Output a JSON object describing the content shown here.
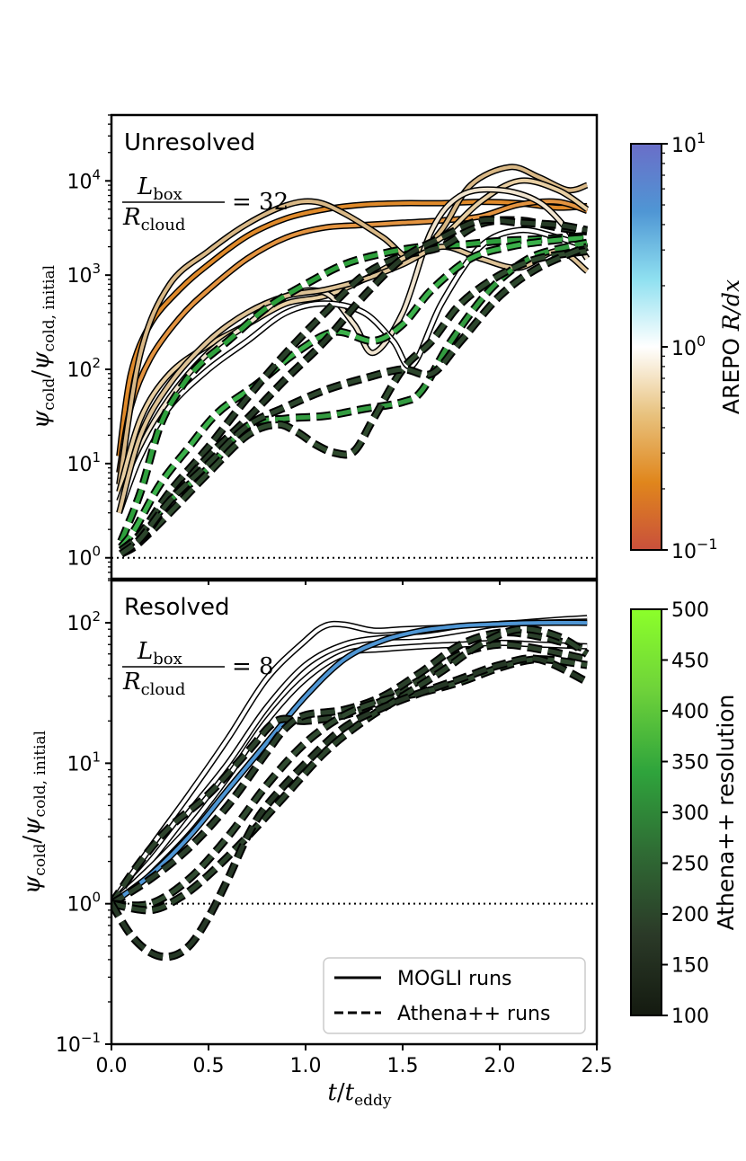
{
  "chart_data": [
    {
      "type": "line",
      "panel_label": "Unresolved",
      "annotation": {
        "numerator": "L",
        "numerator_sub": "box",
        "denominator": "R",
        "denominator_sub": "cloud",
        "value": "= 32"
      },
      "ylabel": {
        "main": "ψ",
        "sub_num": "cold",
        "slash": "/",
        "main2": "ψ",
        "sub_den": "cold, initial"
      },
      "yscale": "log",
      "ylim": [
        0.6,
        50000
      ],
      "xlim": [
        0,
        2.5
      ],
      "yticks": [
        {
          "v": 1,
          "label": "10",
          "exp": "0"
        },
        {
          "v": 10,
          "label": "10",
          "exp": "1"
        },
        {
          "v": 100,
          "label": "10",
          "exp": "2"
        },
        {
          "v": 1000,
          "label": "10",
          "exp": "3"
        },
        {
          "v": 10000,
          "label": "10",
          "exp": "4"
        }
      ],
      "reference_line": 1,
      "series": [
        {
          "style": "solid",
          "color": "#e08a2a",
          "x": [
            0.04,
            0.1,
            0.2,
            0.35,
            0.5,
            0.7,
            0.9,
            1.1,
            1.3,
            1.5,
            1.7,
            1.9,
            2.1,
            2.3,
            2.45
          ],
          "y": [
            12,
            90,
            300,
            700,
            1300,
            2600,
            4000,
            5000,
            5600,
            5800,
            5800,
            6000,
            5800,
            5200,
            5400
          ]
        },
        {
          "style": "solid",
          "color": "#e49440",
          "x": [
            0.04,
            0.1,
            0.2,
            0.35,
            0.5,
            0.7,
            0.9,
            1.1,
            1.3,
            1.5,
            1.7,
            1.9,
            2.1,
            2.3,
            2.45
          ],
          "y": [
            8,
            40,
            130,
            350,
            700,
            1500,
            2500,
            3200,
            3400,
            3600,
            3800,
            4200,
            5600,
            6000,
            4800
          ]
        },
        {
          "style": "solid",
          "color": "#d9b886",
          "x": [
            0.04,
            0.15,
            0.3,
            0.5,
            0.7,
            0.9,
            1.05,
            1.2,
            1.4,
            1.55,
            1.7,
            1.85,
            2.05,
            2.2,
            2.35,
            2.45
          ],
          "y": [
            6,
            150,
            800,
            1800,
            3500,
            5500,
            6000,
            4500,
            2500,
            1500,
            3000,
            9000,
            14000,
            11000,
            8000,
            9000
          ]
        },
        {
          "style": "solid",
          "color": "#e8cfa3",
          "x": [
            0.04,
            0.15,
            0.3,
            0.5,
            0.7,
            0.9,
            1.1,
            1.3,
            1.5,
            1.7,
            1.9,
            2.1,
            2.3,
            2.45
          ],
          "y": [
            5,
            30,
            90,
            180,
            300,
            500,
            600,
            900,
            1500,
            2500,
            6000,
            10000,
            8000,
            5000
          ]
        },
        {
          "style": "solid",
          "color": "#f0e4cf",
          "x": [
            0.04,
            0.15,
            0.3,
            0.5,
            0.7,
            0.9,
            1.1,
            1.25,
            1.35,
            1.5,
            1.65,
            1.8,
            2.0,
            2.2,
            2.35,
            2.45
          ],
          "y": [
            4,
            15,
            50,
            150,
            300,
            600,
            650,
            300,
            150,
            400,
            3000,
            7000,
            8000,
            6000,
            3000,
            1500
          ]
        },
        {
          "style": "solid",
          "color": "#ffffff",
          "x": [
            0.04,
            0.15,
            0.3,
            0.5,
            0.7,
            0.9,
            1.1,
            1.3,
            1.45,
            1.55,
            1.7,
            1.9,
            2.1,
            2.3,
            2.45
          ],
          "y": [
            3,
            12,
            40,
            100,
            200,
            400,
            500,
            400,
            200,
            110,
            500,
            2000,
            3000,
            2500,
            2000
          ]
        },
        {
          "style": "solid",
          "color": "#ddc296",
          "x": [
            0.04,
            0.15,
            0.3,
            0.5,
            0.7,
            0.9,
            1.1,
            1.3,
            1.5,
            1.7,
            1.9,
            2.1,
            2.3,
            2.45
          ],
          "y": [
            3,
            20,
            70,
            200,
            400,
            600,
            700,
            900,
            1300,
            2000,
            1500,
            1200,
            1800,
            1100
          ]
        },
        {
          "style": "dashed",
          "color": "#2ea03c",
          "x": [
            0.05,
            0.15,
            0.25,
            0.35,
            0.45,
            0.6,
            0.8,
            1.0,
            1.2,
            1.4,
            1.6,
            1.8,
            2.0,
            2.2,
            2.45
          ],
          "y": [
            1.5,
            5,
            25,
            60,
            110,
            200,
            450,
            800,
            1300,
            1700,
            2000,
            2100,
            2300,
            2400,
            2600
          ]
        },
        {
          "style": "dashed",
          "color": "#3bb04a",
          "x": [
            0.05,
            0.12,
            0.25,
            0.4,
            0.55,
            0.75,
            0.95,
            1.15,
            1.35,
            1.5,
            1.65,
            1.85,
            2.05,
            2.25,
            2.45
          ],
          "y": [
            1.3,
            2,
            6,
            15,
            35,
            70,
            150,
            250,
            200,
            300,
            700,
            1500,
            2000,
            2300,
            2500
          ]
        },
        {
          "style": "dashed",
          "color": "#339b40",
          "x": [
            0.05,
            0.15,
            0.3,
            0.5,
            0.7,
            0.9,
            1.1,
            1.3,
            1.5,
            1.6,
            1.75,
            1.95,
            2.15,
            2.35,
            2.45
          ],
          "y": [
            1.2,
            1.8,
            4,
            9,
            25,
            30,
            32,
            38,
            45,
            60,
            200,
            700,
            1500,
            2000,
            2200
          ]
        },
        {
          "style": "dashed",
          "color": "#2f4a2e",
          "x": [
            0.05,
            0.15,
            0.3,
            0.5,
            0.7,
            0.85,
            0.95,
            1.05,
            1.15,
            1.25,
            1.35,
            1.5,
            1.65,
            1.8,
            2.0,
            2.2,
            2.45
          ],
          "y": [
            1.1,
            1.5,
            3,
            8,
            20,
            26,
            22,
            16,
            13,
            13.5,
            30,
            100,
            200,
            500,
            1000,
            1500,
            1800
          ]
        },
        {
          "style": "dashed",
          "color": "#2a402a",
          "x": [
            0.05,
            0.15,
            0.3,
            0.5,
            0.7,
            0.9,
            1.1,
            1.3,
            1.5,
            1.7,
            1.9,
            2.1,
            2.3,
            2.45
          ],
          "y": [
            1.2,
            1.8,
            5,
            15,
            50,
            150,
            400,
            1000,
            1600,
            2000,
            3500,
            3800,
            3200,
            2900
          ]
        },
        {
          "style": "dashed",
          "color": "#263a26",
          "x": [
            0.05,
            0.15,
            0.3,
            0.5,
            0.7,
            0.9,
            1.1,
            1.3,
            1.5,
            1.7,
            1.9,
            2.1,
            2.3,
            2.45
          ],
          "y": [
            1.1,
            1.5,
            4,
            12,
            30,
            80,
            200,
            600,
            1500,
            2500,
            3800,
            3600,
            3400,
            3000
          ]
        },
        {
          "style": "dashed",
          "color": "#2c452c",
          "x": [
            0.05,
            0.15,
            0.3,
            0.5,
            0.7,
            0.9,
            1.1,
            1.3,
            1.5,
            1.65,
            1.8,
            2.0,
            2.2,
            2.45
          ],
          "y": [
            1.1,
            1.6,
            4,
            10,
            25,
            40,
            60,
            80,
            100,
            90,
            200,
            600,
            1200,
            2000
          ]
        }
      ]
    },
    {
      "type": "line",
      "panel_label": "Resolved",
      "annotation": {
        "numerator": "L",
        "numerator_sub": "box",
        "denominator": "R",
        "denominator_sub": "cloud",
        "value": "= 8"
      },
      "ylabel": {
        "main": "ψ",
        "sub_num": "cold",
        "slash": "/",
        "main2": "ψ",
        "sub_den": "cold, initial"
      },
      "xlabel": {
        "main": "t",
        "slash": "/",
        "main2": "t",
        "sub": "eddy"
      },
      "yscale": "log",
      "ylim": [
        0.1,
        200
      ],
      "xlim": [
        0,
        2.5
      ],
      "yticks": [
        {
          "v": 0.1,
          "label": "10",
          "exp": "−1"
        },
        {
          "v": 1,
          "label": "10",
          "exp": "0"
        },
        {
          "v": 10,
          "label": "10",
          "exp": "1"
        },
        {
          "v": 100,
          "label": "10",
          "exp": "2"
        }
      ],
      "xticks": [
        "0.0",
        "0.5",
        "1.0",
        "1.5",
        "2.0",
        "2.5"
      ],
      "reference_line": 1,
      "legend": {
        "items": [
          {
            "label": "MOGLI runs",
            "style": "solid"
          },
          {
            "label": "Athena++ runs",
            "style": "dashed"
          }
        ],
        "position": "lower right"
      },
      "series": [
        {
          "style": "solid",
          "color": "#ffffff",
          "x": [
            0,
            0.2,
            0.4,
            0.6,
            0.8,
            1.0,
            1.1,
            1.2,
            1.35,
            1.5,
            1.7,
            1.9,
            2.1,
            2.3,
            2.45
          ],
          "y": [
            1,
            2.5,
            6,
            15,
            40,
            75,
            95,
            97,
            88,
            90,
            92,
            95,
            100,
            105,
            108
          ]
        },
        {
          "style": "solid",
          "color": "#ffffff",
          "x": [
            0,
            0.2,
            0.4,
            0.6,
            0.8,
            1.0,
            1.2,
            1.4,
            1.6,
            1.8,
            2.0,
            2.2,
            2.45
          ],
          "y": [
            1,
            2,
            4.5,
            10,
            25,
            50,
            70,
            78,
            80,
            88,
            98,
            100,
            102
          ]
        },
        {
          "style": "solid",
          "color": "#ffffff",
          "x": [
            0,
            0.2,
            0.4,
            0.6,
            0.8,
            1.0,
            1.2,
            1.4,
            1.6,
            1.8,
            2.0,
            2.2,
            2.45
          ],
          "y": [
            1,
            1.8,
            3.5,
            8,
            20,
            40,
            60,
            65,
            68,
            70,
            72,
            70,
            68
          ]
        },
        {
          "style": "solid",
          "color": "#4f96d4",
          "x": [
            0,
            0.2,
            0.4,
            0.6,
            0.8,
            1.0,
            1.2,
            1.4,
            1.6,
            1.8,
            2.0,
            2.2,
            2.45
          ],
          "y": [
            1,
            1.6,
            3,
            6.5,
            14,
            30,
            55,
            75,
            88,
            95,
            98,
            100,
            100
          ]
        },
        {
          "style": "dashed",
          "color": "#2d422c",
          "x": [
            0,
            0.15,
            0.3,
            0.5,
            0.7,
            0.85,
            1.0,
            1.2,
            1.4,
            1.6,
            1.8,
            2.0,
            2.2,
            2.45
          ],
          "y": [
            1,
            2,
            3.5,
            6,
            12,
            20,
            20,
            22,
            28,
            40,
            60,
            70,
            65,
            55
          ]
        },
        {
          "style": "dashed",
          "color": "#2a3f2a",
          "x": [
            0,
            0.2,
            0.4,
            0.6,
            0.8,
            0.9,
            1.0,
            1.2,
            1.4,
            1.6,
            1.8,
            2.0,
            2.2,
            2.45
          ],
          "y": [
            1,
            1.5,
            2.5,
            5,
            12,
            18,
            22,
            24,
            30,
            45,
            70,
            85,
            80,
            65
          ]
        },
        {
          "style": "dashed",
          "color": "#304a30",
          "x": [
            0,
            0.2,
            0.4,
            0.6,
            0.8,
            1.0,
            1.2,
            1.4,
            1.6,
            1.8,
            2.0,
            2.2,
            2.45
          ],
          "y": [
            1,
            1,
            1.5,
            3,
            7,
            14,
            22,
            28,
            32,
            38,
            48,
            55,
            50
          ]
        },
        {
          "style": "dashed",
          "color": "#2b432b",
          "x": [
            0,
            0.2,
            0.35,
            0.5,
            0.7,
            0.9,
            1.1,
            1.3,
            1.5,
            1.7,
            1.9,
            2.1,
            2.3,
            2.45
          ],
          "y": [
            1,
            0.9,
            1.1,
            1.6,
            3,
            6,
            12,
            20,
            30,
            45,
            70,
            90,
            80,
            60
          ]
        },
        {
          "style": "dashed",
          "color": "#263826",
          "x": [
            0,
            0.1,
            0.2,
            0.3,
            0.4,
            0.5,
            0.6,
            0.7,
            0.8,
            1.0,
            1.2,
            1.4,
            1.6,
            1.8,
            2.0,
            2.2,
            2.45
          ],
          "y": [
            1,
            0.6,
            0.45,
            0.42,
            0.5,
            0.8,
            1.5,
            3,
            5,
            10,
            18,
            25,
            32,
            40,
            50,
            55,
            38
          ]
        }
      ]
    }
  ],
  "colorbars": [
    {
      "label_prefix": "AREPO ",
      "label_math": "R/dx",
      "scale": "log",
      "ticks": [
        {
          "label": "10",
          "exp": "1"
        },
        {
          "label": "10",
          "exp": "0"
        },
        {
          "label": "10",
          "exp": "−1"
        }
      ],
      "colors": [
        "#c9503c",
        "#e0861c",
        "#e8c27e",
        "#ffffff",
        "#8fe0f0",
        "#4f96d4",
        "#6a6ec8"
      ]
    },
    {
      "label": "Athena++ resolution",
      "ticks": [
        "100",
        "150",
        "200",
        "250",
        "300",
        "350",
        "400",
        "450",
        "500"
      ],
      "colors": [
        "#141a10",
        "#2b3a28",
        "#2f6b34",
        "#2fa43c",
        "#6ed23a",
        "#8cff2a"
      ]
    }
  ]
}
